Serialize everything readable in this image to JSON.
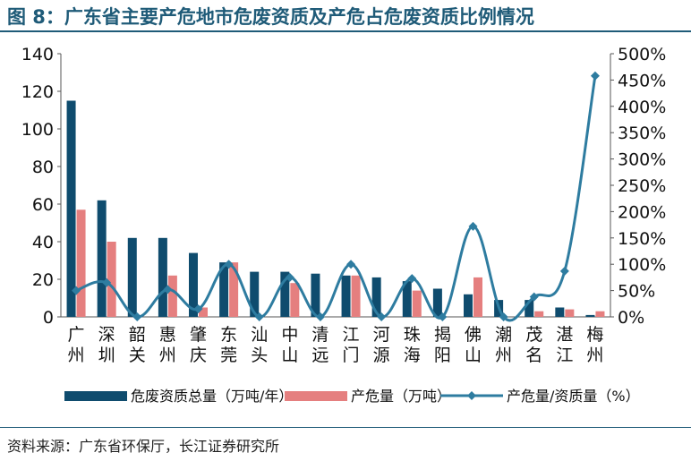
{
  "title": "图 8：广东省主要产危地市危废资质及产危占危废资质比例情况",
  "source": "资料来源：广东省环保厅，长江证券研究所",
  "colors": {
    "title": "#1f5b78",
    "bar1": "#0f4c6e",
    "bar2": "#e57f7f",
    "line": "#2e7ca0"
  },
  "chart_data": {
    "type": "bar",
    "categories": [
      "广州",
      "深圳",
      "韶关",
      "惠州",
      "肇庆",
      "东莞",
      "汕头",
      "中山",
      "清远",
      "江门",
      "河源",
      "珠海",
      "揭阳",
      "佛山",
      "潮州",
      "茂名",
      "湛江",
      "梅州"
    ],
    "series": [
      {
        "name": "危废资质总量（万吨/年）",
        "type": "bar",
        "axis": "left",
        "values": [
          115,
          62,
          42,
          42,
          34,
          29,
          24,
          24,
          23,
          22,
          21,
          19,
          15,
          12,
          9,
          9,
          5,
          1
        ]
      },
      {
        "name": "产危量（万吨）",
        "type": "bar",
        "axis": "left",
        "values": [
          57,
          40,
          0,
          22,
          5,
          29,
          0,
          18,
          0,
          22,
          0,
          14,
          0,
          21,
          0,
          3,
          4,
          3
        ]
      },
      {
        "name": "产危量/资质量（%）",
        "type": "line",
        "axis": "right",
        "values": [
          50,
          65,
          0,
          52,
          15,
          100,
          0,
          75,
          0,
          100,
          0,
          73,
          0,
          172,
          0,
          38,
          87,
          458
        ]
      }
    ],
    "y_left": {
      "range": [
        0,
        140
      ],
      "ticks": [
        "0",
        "20",
        "40",
        "60",
        "80",
        "100",
        "120",
        "140"
      ]
    },
    "y_right": {
      "range": [
        0,
        500
      ],
      "ticks": [
        "0%",
        "50%",
        "100%",
        "150%",
        "200%",
        "250%",
        "300%",
        "350%",
        "400%",
        "450%",
        "500%"
      ]
    },
    "legend": "bottom",
    "grid": false
  }
}
